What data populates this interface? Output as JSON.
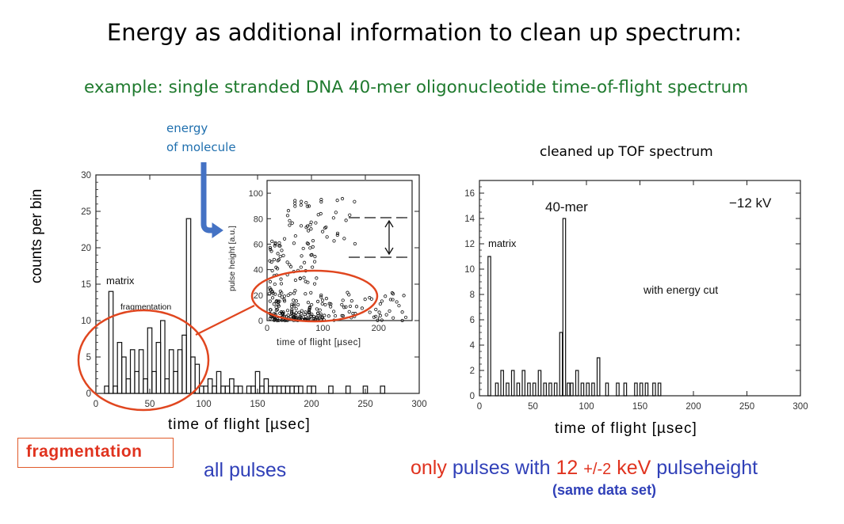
{
  "slide": {
    "title": "Energy as additional information to clean up spectrum:",
    "subtitle": "example: single stranded DNA 40-mer oligonucleotide time-of-flight spectrum",
    "energy_label_line1": "energy",
    "energy_label_line2": "of molecule",
    "cleaned_label": "cleaned up TOF spectrum",
    "fragmentation_box": "fragmentation",
    "all_pulses": "all pulses",
    "only_pulses": {
      "part1": "only",
      "part2": "pulses with",
      "part3": "12",
      "part4": "+/-2",
      "part5": "keV",
      "part6": "pulseheight"
    },
    "same_data": "(same data set)",
    "colors": {
      "title": "#000000",
      "subtitle": "#1f7a2e",
      "energy_label": "#1f6fae",
      "arrow": "#4472c4",
      "highlight_ellipse": "#e0461f",
      "blue_text": "#3040b8",
      "red_text": "#e0331f"
    }
  },
  "chart_data": [
    {
      "id": "left",
      "type": "histogram",
      "xlabel": "time of flight [µsec]",
      "ylabel": "counts per bin",
      "xlim": [
        0,
        300
      ],
      "ylim": [
        0,
        30
      ],
      "xticks": [
        0,
        50,
        100,
        150,
        200,
        250,
        300
      ],
      "yticks": [
        0,
        5,
        10,
        15,
        20,
        25,
        30
      ],
      "bin_width": 4,
      "bins": [
        [
          8,
          1
        ],
        [
          12,
          14
        ],
        [
          16,
          1
        ],
        [
          20,
          7
        ],
        [
          24,
          5
        ],
        [
          28,
          2
        ],
        [
          32,
          6
        ],
        [
          36,
          3
        ],
        [
          40,
          6
        ],
        [
          44,
          2
        ],
        [
          48,
          9
        ],
        [
          52,
          3
        ],
        [
          56,
          7
        ],
        [
          60,
          10
        ],
        [
          64,
          2
        ],
        [
          68,
          6
        ],
        [
          72,
          3
        ],
        [
          76,
          6
        ],
        [
          80,
          8
        ],
        [
          84,
          24
        ],
        [
          88,
          5
        ],
        [
          92,
          4
        ],
        [
          96,
          1
        ],
        [
          100,
          1
        ],
        [
          104,
          2
        ],
        [
          108,
          1
        ],
        [
          112,
          3
        ],
        [
          116,
          1
        ],
        [
          120,
          1
        ],
        [
          124,
          2
        ],
        [
          128,
          1
        ],
        [
          132,
          1
        ],
        [
          136,
          0
        ],
        [
          140,
          1
        ],
        [
          144,
          1
        ],
        [
          148,
          3
        ],
        [
          152,
          1
        ],
        [
          156,
          2
        ],
        [
          160,
          1
        ],
        [
          164,
          1
        ],
        [
          168,
          1
        ],
        [
          172,
          1
        ],
        [
          176,
          1
        ],
        [
          180,
          1
        ],
        [
          184,
          1
        ],
        [
          188,
          1
        ],
        [
          192,
          0
        ],
        [
          196,
          1
        ],
        [
          200,
          1
        ],
        [
          216,
          1
        ],
        [
          232,
          1
        ],
        [
          248,
          1
        ],
        [
          264,
          1
        ]
      ],
      "annotations": [
        "matrix",
        "fragmentation"
      ],
      "inset": {
        "type": "scatter",
        "xlabel": "time of flight [µsec]",
        "ylabel": "pulse height [a.u.]",
        "xlim": [
          0,
          260
        ],
        "ylim": [
          0,
          110
        ],
        "xticks": [
          0,
          100,
          200
        ],
        "yticks": [
          0,
          20,
          40,
          60,
          80,
          100
        ]
      }
    },
    {
      "id": "right",
      "type": "histogram",
      "xlabel": "time of flight [µsec]",
      "xlim": [
        0,
        300
      ],
      "ylim": [
        0,
        17
      ],
      "xticks": [
        0,
        50,
        100,
        150,
        200,
        250,
        300
      ],
      "yticks": [
        0,
        2,
        4,
        6,
        8,
        10,
        12,
        14,
        16
      ],
      "bin_width": 2.5,
      "bins": [
        [
          8,
          11
        ],
        [
          15,
          1
        ],
        [
          20,
          2
        ],
        [
          25,
          1
        ],
        [
          30,
          2
        ],
        [
          35,
          1
        ],
        [
          40,
          2
        ],
        [
          45,
          1
        ],
        [
          50,
          1
        ],
        [
          55,
          2
        ],
        [
          60,
          1
        ],
        [
          65,
          1
        ],
        [
          70,
          1
        ],
        [
          75,
          5
        ],
        [
          78,
          14
        ],
        [
          82,
          1
        ],
        [
          85,
          1
        ],
        [
          90,
          2
        ],
        [
          95,
          1
        ],
        [
          100,
          1
        ],
        [
          105,
          1
        ],
        [
          110,
          3
        ],
        [
          118,
          1
        ],
        [
          128,
          1
        ],
        [
          135,
          1
        ],
        [
          145,
          1
        ],
        [
          150,
          1
        ],
        [
          155,
          1
        ],
        [
          162,
          1
        ],
        [
          167,
          1
        ]
      ],
      "annotations": [
        "matrix",
        "40-mer",
        "−12 kV",
        "with energy cut"
      ]
    }
  ]
}
